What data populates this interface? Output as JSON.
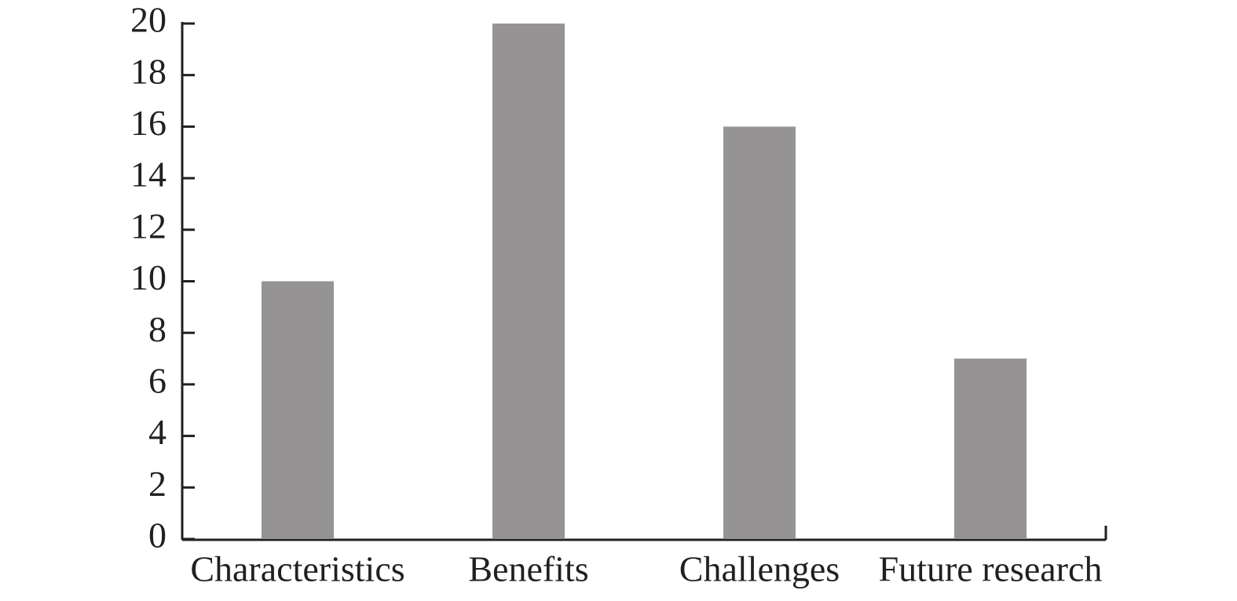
{
  "chart_data": {
    "type": "bar",
    "categories": [
      "Characteristics",
      "Benefits",
      "Challenges",
      "Future research"
    ],
    "values": [
      10,
      20,
      16,
      7
    ],
    "color": "#959394",
    "ylim": [
      0,
      20
    ],
    "yticks": [
      0,
      2,
      4,
      6,
      8,
      10,
      12,
      14,
      16,
      18,
      20
    ],
    "grid": false
  }
}
